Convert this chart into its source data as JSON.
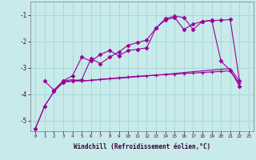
{
  "xlabel": "Windchill (Refroidissement éolien,°C)",
  "background_color": "#c8eaea",
  "grid_color": "#a8d8d8",
  "line_color": "#990099",
  "xmin": -0.5,
  "xmax": 23.5,
  "ymin": -5.4,
  "ymax": -0.5,
  "yticks": [
    -5,
    -4,
    -3,
    -2,
    -1
  ],
  "xticks": [
    0,
    1,
    2,
    3,
    4,
    5,
    6,
    7,
    8,
    9,
    10,
    11,
    12,
    13,
    14,
    15,
    16,
    17,
    18,
    19,
    20,
    21,
    22,
    23
  ],
  "line1_x": [
    0,
    1,
    2,
    3,
    4,
    5,
    6,
    7,
    8,
    9,
    10,
    11,
    12,
    13,
    14,
    15,
    16,
    17,
    18,
    19,
    20,
    21,
    22
  ],
  "line1_y": [
    -5.3,
    -4.45,
    -3.9,
    -3.55,
    -3.5,
    -3.5,
    -3.47,
    -3.44,
    -3.41,
    -3.38,
    -3.35,
    -3.32,
    -3.3,
    -3.28,
    -3.26,
    -3.24,
    -3.22,
    -3.2,
    -3.18,
    -3.16,
    -3.14,
    -3.12,
    -3.6
  ],
  "line2_x": [
    0,
    1,
    2,
    3,
    4,
    5,
    6,
    7,
    8,
    9,
    10,
    11,
    12,
    13,
    14,
    15,
    16,
    17,
    18,
    19,
    20,
    21,
    22
  ],
  "line2_y": [
    -5.3,
    -4.45,
    -3.9,
    -3.55,
    -3.5,
    -3.45,
    -2.65,
    -2.85,
    -2.6,
    -2.4,
    -2.15,
    -2.05,
    -1.95,
    -1.5,
    -1.15,
    -1.05,
    -1.1,
    -1.55,
    -1.25,
    -1.22,
    -1.2,
    -1.18,
    -3.5
  ],
  "line3_x": [
    2,
    3,
    4,
    5,
    6,
    7,
    8,
    9,
    10,
    11,
    12,
    13,
    14,
    15,
    16,
    17,
    18,
    19,
    20,
    21,
    22
  ],
  "line3_y": [
    -3.85,
    -3.5,
    -3.45,
    -3.5,
    -3.48,
    -3.45,
    -3.42,
    -3.4,
    -3.37,
    -3.34,
    -3.31,
    -3.28,
    -3.25,
    -3.22,
    -3.18,
    -3.15,
    -3.12,
    -3.09,
    -3.06,
    -3.03,
    -3.5
  ],
  "line4_x": [
    1,
    2,
    3,
    4,
    5,
    6,
    7,
    8,
    9,
    10,
    11,
    12,
    13,
    14,
    15,
    16,
    17,
    18,
    19,
    20,
    21,
    22
  ],
  "line4_y": [
    -3.5,
    -3.85,
    -3.5,
    -3.3,
    -2.6,
    -2.75,
    -2.5,
    -2.35,
    -2.55,
    -2.35,
    -2.3,
    -2.25,
    -1.5,
    -1.2,
    -1.1,
    -1.55,
    -1.35,
    -1.25,
    -1.2,
    -2.75,
    -3.1,
    -3.7
  ]
}
